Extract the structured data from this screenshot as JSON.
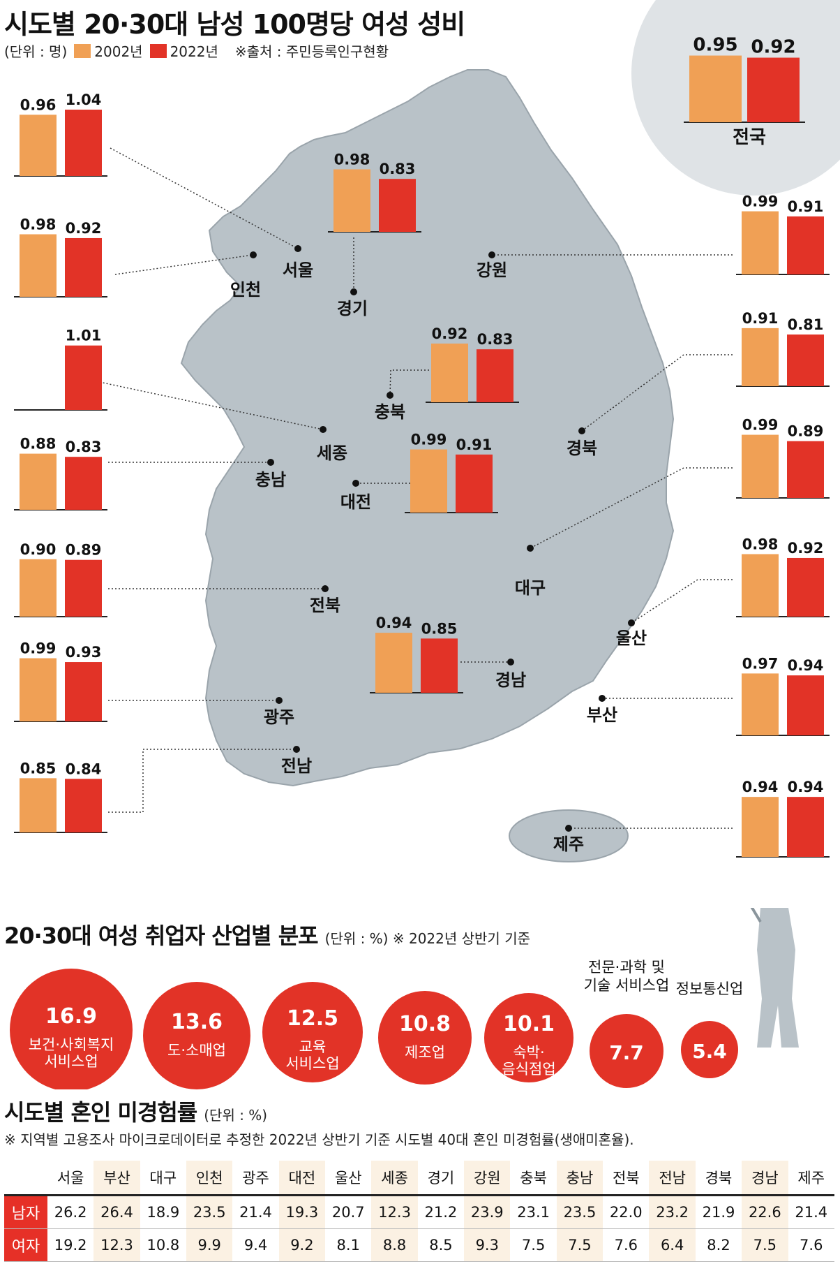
{
  "title": "시도별 20·30대 남성 100명당 여성 성비",
  "subtitle": {
    "unit": "(단위 : 명)",
    "legend": [
      {
        "label": "2002년",
        "color": "#f0a055"
      },
      {
        "label": "2022년",
        "color": "#e23327"
      }
    ],
    "source": "※출처 : 주민등록인구현황"
  },
  "chart_data": [
    {
      "type": "bar",
      "title": "시도별 20·30대 남성 100명당 여성 성비",
      "series_names": [
        "2002년",
        "2022년"
      ],
      "regions": [
        {
          "name": "전국",
          "v2002": 0.95,
          "v2022": 0.92
        },
        {
          "name": "서울",
          "v2002": 0.96,
          "v2022": 1.04
        },
        {
          "name": "인천",
          "v2002": 0.98,
          "v2022": 0.92
        },
        {
          "name": "세종",
          "v2002": null,
          "v2022": 1.01
        },
        {
          "name": "충남",
          "v2002": 0.88,
          "v2022": 0.83
        },
        {
          "name": "전북",
          "v2002": 0.9,
          "v2022": 0.89
        },
        {
          "name": "광주",
          "v2002": 0.99,
          "v2022": 0.93
        },
        {
          "name": "전남",
          "v2002": 0.85,
          "v2022": 0.84
        },
        {
          "name": "경기",
          "v2002": 0.98,
          "v2022": 0.83
        },
        {
          "name": "충북",
          "v2002": 0.92,
          "v2022": 0.83
        },
        {
          "name": "대전",
          "v2002": 0.99,
          "v2022": 0.91
        },
        {
          "name": "경남",
          "v2002": 0.94,
          "v2022": 0.85
        },
        {
          "name": "강원",
          "v2002": 0.99,
          "v2022": 0.91
        },
        {
          "name": "경북",
          "v2002": 0.91,
          "v2022": 0.81
        },
        {
          "name": "대구",
          "v2002": 0.99,
          "v2022": 0.89
        },
        {
          "name": "울산",
          "v2002": 0.98,
          "v2022": 0.92
        },
        {
          "name": "부산",
          "v2002": 0.97,
          "v2022": 0.94
        },
        {
          "name": "제주",
          "v2002": 0.94,
          "v2022": 0.94
        }
      ]
    },
    {
      "type": "bubble",
      "title": "20·30대 여성 취업자 산업별 분포",
      "unit": "(단위 : %)",
      "note": "※ 2022년 상반기 기준",
      "items": [
        {
          "label": "보건·사회복지\n서비스업",
          "value": 16.9
        },
        {
          "label": "도·소매업",
          "value": 13.6
        },
        {
          "label": "교육\n서비스업",
          "value": 12.5
        },
        {
          "label": "제조업",
          "value": 10.8
        },
        {
          "label": "숙박·\n음식점업",
          "value": 10.1
        },
        {
          "label": "전문·과학 및\n기술 서비스업",
          "value": 7.7
        },
        {
          "label": "정보통신업",
          "value": 5.4
        }
      ]
    },
    {
      "type": "table",
      "title": "시도별 혼인 미경험률",
      "unit": "(단위 : %)",
      "note": "※ 지역별 고용조사 마이크로데이터로 추정한 2022년 상반기 기준 시도별 40대 혼인 미경험률(생애미혼율).",
      "columns": [
        "서울",
        "부산",
        "대구",
        "인천",
        "광주",
        "대전",
        "울산",
        "세종",
        "경기",
        "강원",
        "충북",
        "충남",
        "전북",
        "전남",
        "경북",
        "경남",
        "제주"
      ],
      "rows": [
        {
          "label": "남자",
          "values": [
            "26.2",
            "26.4",
            "18.9",
            "23.5",
            "21.4",
            "19.3",
            "20.7",
            "12.3",
            "21.2",
            "23.9",
            "23.1",
            "23.5",
            "22.0",
            "23.2",
            "21.9",
            "22.6",
            "21.4"
          ]
        },
        {
          "label": "여자",
          "values": [
            "19.2",
            "12.3",
            "10.8",
            "9.9",
            "9.4",
            "9.2",
            "8.1",
            "8.8",
            "8.5",
            "9.3",
            "7.5",
            "7.5",
            "7.6",
            "6.4",
            "8.2",
            "7.5",
            "7.6"
          ]
        }
      ]
    }
  ],
  "colors": {
    "bar2002": "#f0a055",
    "bar2022": "#e23327",
    "map": "#b9c2c8",
    "circle_bg": "#dfe3e6"
  }
}
